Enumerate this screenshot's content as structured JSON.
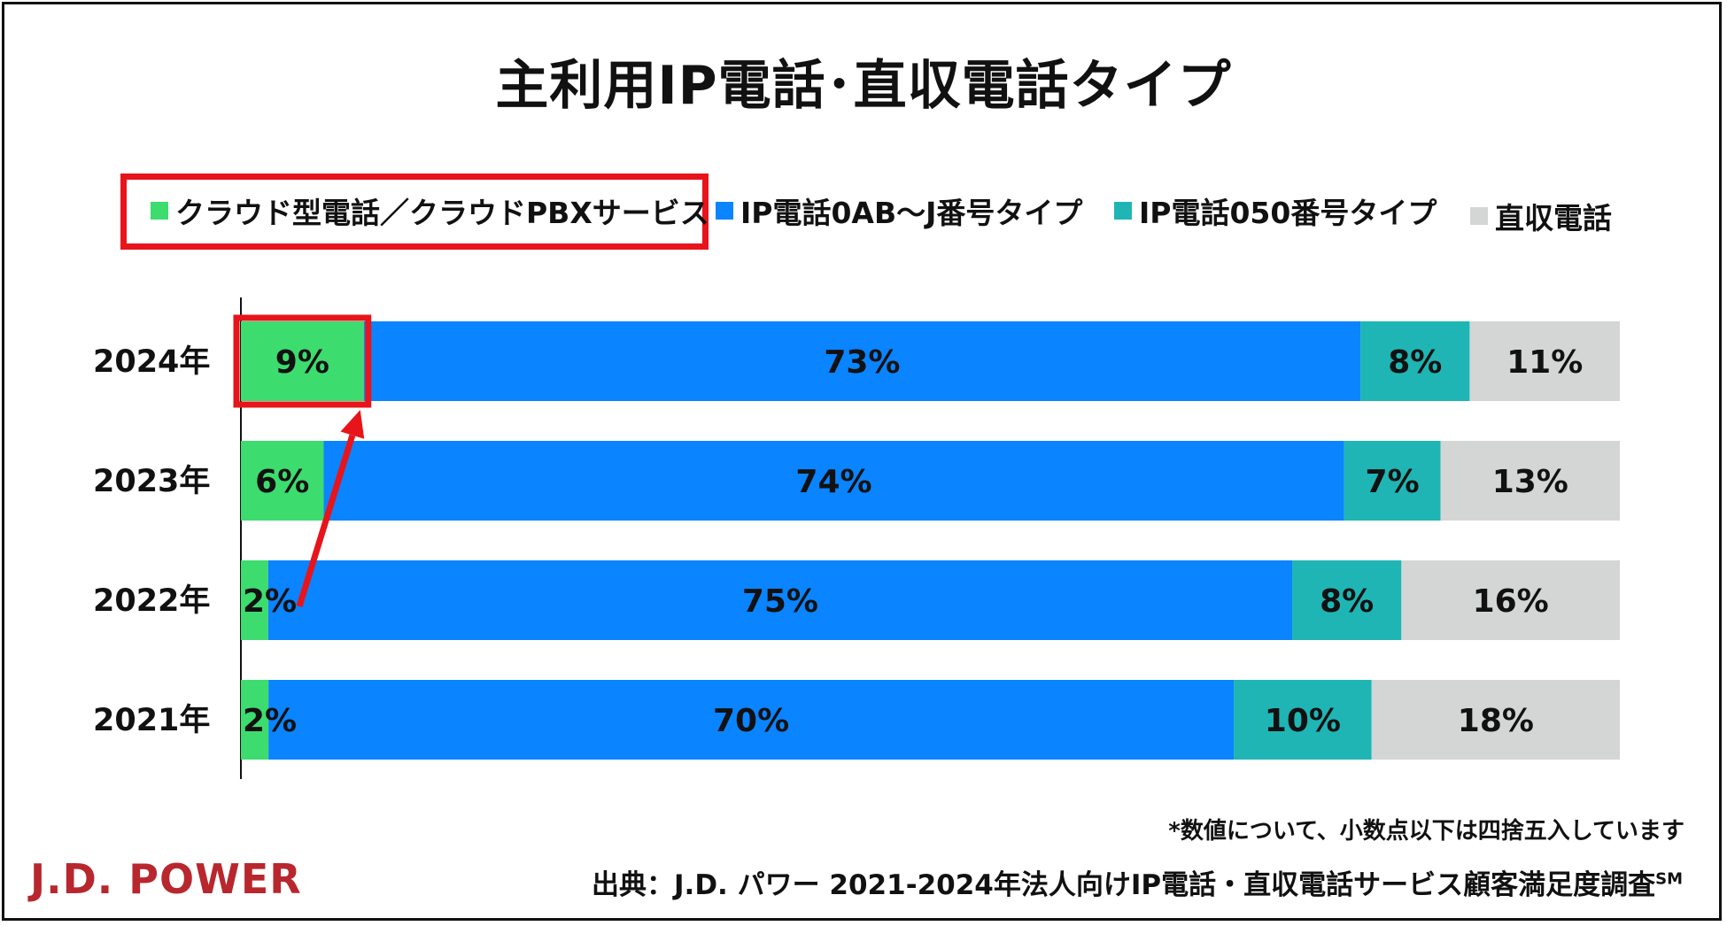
{
  "title": "主利用IP電話･直収電話タイプ",
  "legend": [
    {
      "label": "クラウド型電話／クラウドPBXサービス",
      "color": "#3ddc6e"
    },
    {
      "label": "IP電話0AB～J番号タイプ",
      "color": "#0a84ff"
    },
    {
      "label": "IP電話050番号タイプ",
      "color": "#1fb5b5"
    },
    {
      "label": "直収電話",
      "color": "#d4d6d6"
    }
  ],
  "chart_data": {
    "type": "bar",
    "orientation": "horizontal",
    "stacked": true,
    "normalized": true,
    "categories": [
      "2024年",
      "2023年",
      "2022年",
      "2021年"
    ],
    "series": [
      {
        "name": "クラウド型電話／クラウドPBXサービス",
        "values": [
          9,
          6,
          2,
          2
        ],
        "labels": [
          "9%",
          "6%",
          "2%",
          "2%"
        ],
        "color": "#3ddc6e"
      },
      {
        "name": "IP電話0AB～J番号タイプ",
        "values": [
          73,
          74,
          75,
          70
        ],
        "labels": [
          "73%",
          "74%",
          "75%",
          "70%"
        ],
        "color": "#0a84ff"
      },
      {
        "name": "IP電話050番号タイプ",
        "values": [
          8,
          7,
          8,
          10
        ],
        "labels": [
          "8%",
          "7%",
          "8%",
          "10%"
        ],
        "color": "#1fb5b5"
      },
      {
        "name": "直収電話",
        "values": [
          11,
          13,
          16,
          18
        ],
        "labels": [
          "11%",
          "13%",
          "16%",
          "18%"
        ],
        "color": "#d4d6d6"
      }
    ],
    "highlight": {
      "color": "#e8141b",
      "category": "2024年",
      "series": "クラウド型電話／クラウドPBXサービス"
    },
    "arrow": {
      "from_category": "2022年",
      "to_category": "2024年",
      "series": "クラウド型電話／クラウドPBXサービス",
      "color": "#e8141b"
    }
  },
  "footnote": "*数値について、小数点以下は四捨五入しています",
  "source": {
    "text": "出典：J.D. パワー 2021-2024年法人向けIP電話・直収電話サービス顧客満足度調査",
    "mark": "SM"
  },
  "logo": "J.D. POWER"
}
